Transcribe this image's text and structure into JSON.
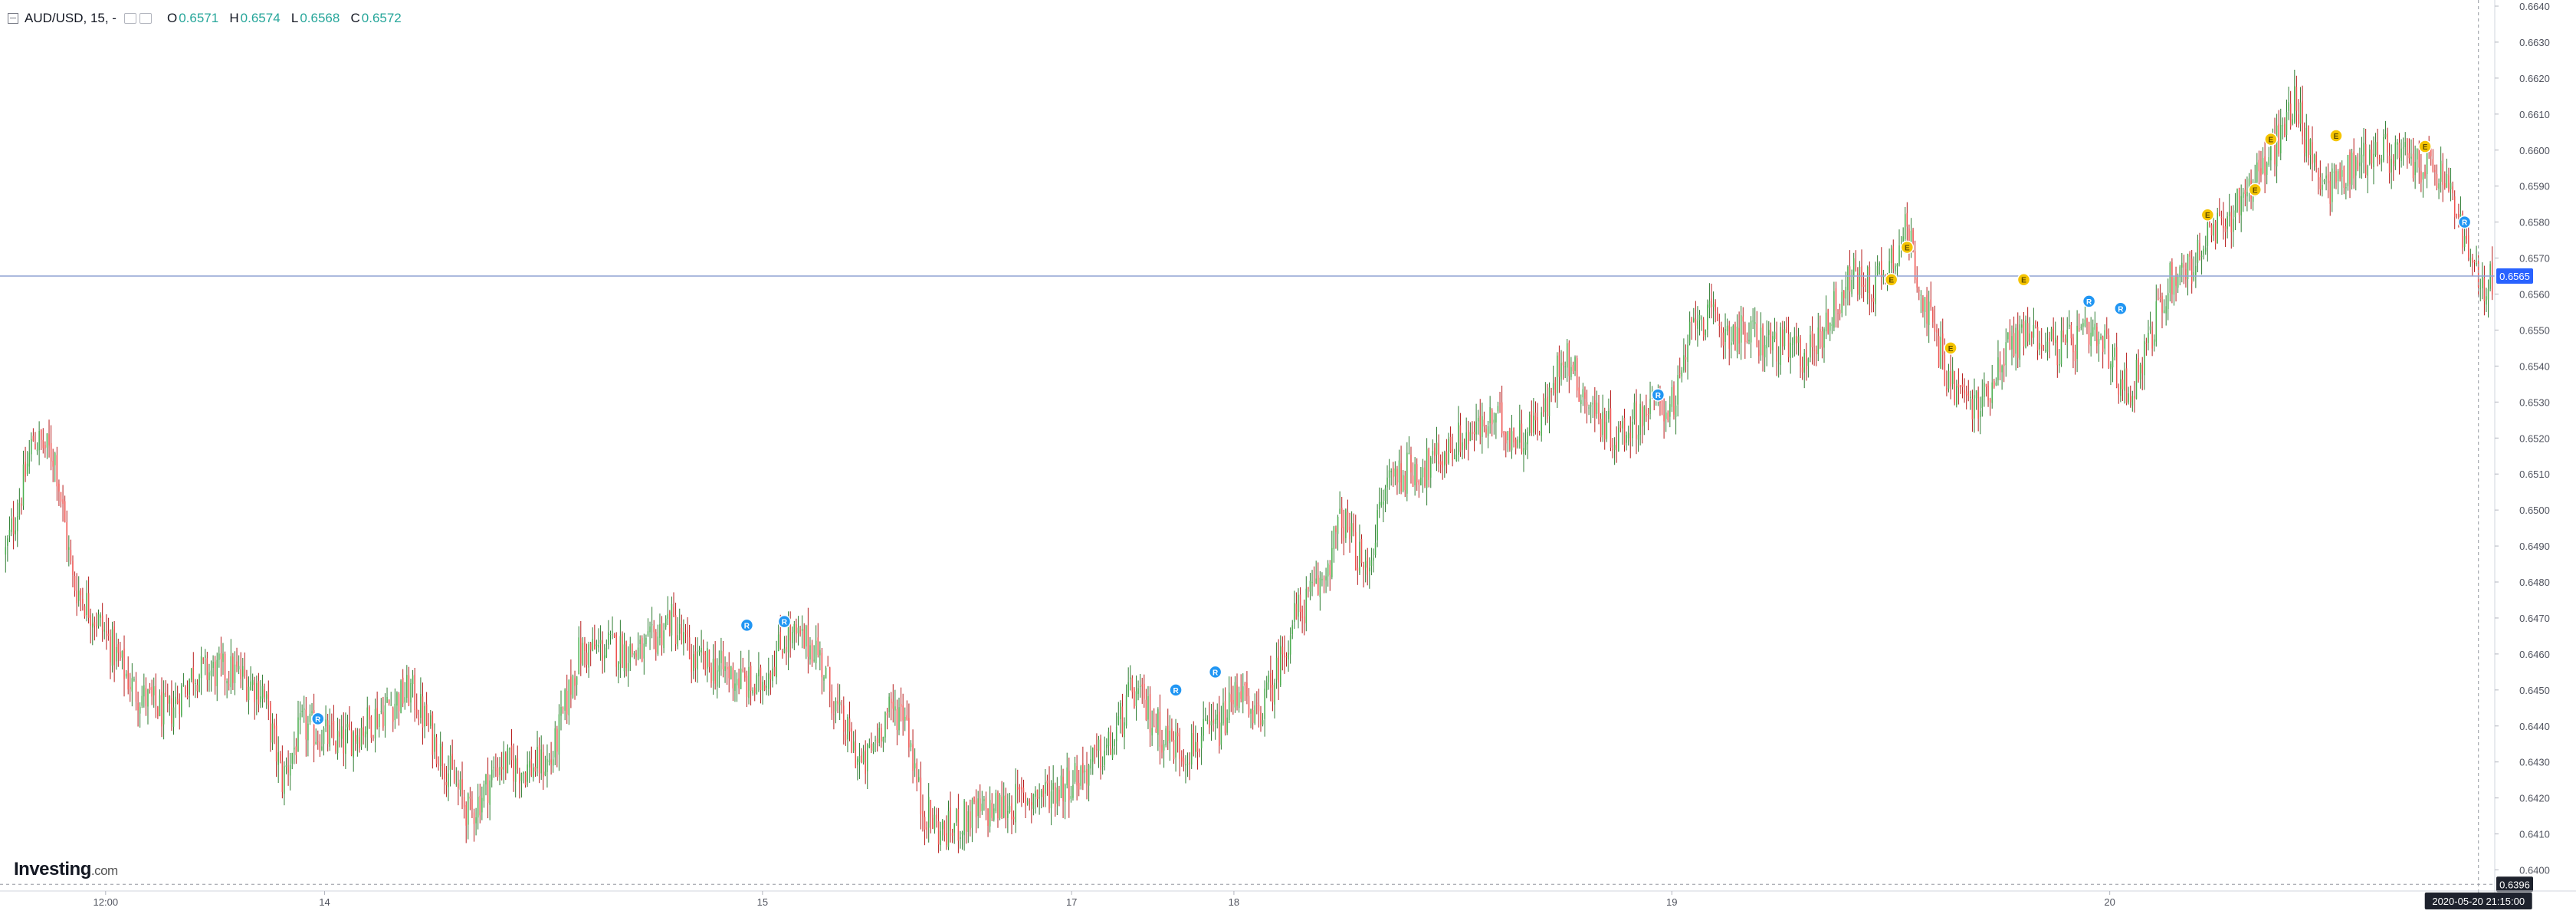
{
  "legend": {
    "symbol": "AUD/USD, 15, -",
    "open_label": "O",
    "open": "0.6571",
    "high_label": "H",
    "high": "0.6574",
    "low_label": "L",
    "low": "0.6568",
    "close_label": "C",
    "close": "0.6572"
  },
  "branding": {
    "name": "Investing",
    "suffix": ".com"
  },
  "colors": {
    "up": "#26a69a",
    "up_body": "#4caf50",
    "down": "#ef5350",
    "wick": "#8a8a8a",
    "price_line": "#2962ff",
    "event_yellow": "#f5c400",
    "event_blue": "#2196f3",
    "grid": "#e0e3eb",
    "text": "#131722"
  },
  "chart_data": {
    "type": "candlestick",
    "ylim": [
      0.6395,
      0.664
    ],
    "y_ticks": [
      "0.6640",
      "0.6630",
      "0.6620",
      "0.6610",
      "0.6600",
      "0.6590",
      "0.6580",
      "0.6570",
      "0.6560",
      "0.6550",
      "0.6540",
      "0.6530",
      "0.6520",
      "0.6510",
      "0.6500",
      "0.6490",
      "0.6480",
      "0.6470",
      "0.6460",
      "0.6450",
      "0.6440",
      "0.6430",
      "0.6420",
      "0.6410",
      "0.6400"
    ],
    "x_ticks": [
      {
        "label": "12:00",
        "frac": 0.041
      },
      {
        "label": "14",
        "frac": 0.126
      },
      {
        "label": "15",
        "frac": 0.296
      },
      {
        "label": "17",
        "frac": 0.416
      },
      {
        "label": "18",
        "frac": 0.479
      },
      {
        "label": "19",
        "frac": 0.649
      },
      {
        "label": "20",
        "frac": 0.819
      }
    ],
    "current_price": 0.6565,
    "current_price_label": "0.6565",
    "low_marker_price": 0.6396,
    "low_marker_label": "0.6396",
    "time_label": "2020-05-20 21:15:00",
    "anchors": [
      [
        0,
        0.6488
      ],
      [
        8,
        0.6505
      ],
      [
        14,
        0.652
      ],
      [
        25,
        0.6515
      ],
      [
        34,
        0.648
      ],
      [
        48,
        0.6468
      ],
      [
        65,
        0.645
      ],
      [
        82,
        0.6443
      ],
      [
        95,
        0.6455
      ],
      [
        115,
        0.6455
      ],
      [
        130,
        0.645
      ],
      [
        140,
        0.6425
      ],
      [
        150,
        0.644
      ],
      [
        170,
        0.6435
      ],
      [
        192,
        0.6445
      ],
      [
        205,
        0.645
      ],
      [
        222,
        0.643
      ],
      [
        235,
        0.6415
      ],
      [
        250,
        0.643
      ],
      [
        262,
        0.6428
      ],
      [
        276,
        0.643
      ],
      [
        290,
        0.646
      ],
      [
        305,
        0.6462
      ],
      [
        323,
        0.646
      ],
      [
        336,
        0.647
      ],
      [
        348,
        0.6458
      ],
      [
        365,
        0.6455
      ],
      [
        380,
        0.645
      ],
      [
        395,
        0.6465
      ],
      [
        410,
        0.6462
      ],
      [
        422,
        0.6442
      ],
      [
        434,
        0.6428
      ],
      [
        445,
        0.6443
      ],
      [
        455,
        0.6445
      ],
      [
        463,
        0.6418
      ],
      [
        474,
        0.641
      ],
      [
        488,
        0.6415
      ],
      [
        508,
        0.6418
      ],
      [
        515,
        0.642
      ],
      [
        530,
        0.6422
      ],
      [
        547,
        0.6428
      ],
      [
        560,
        0.6435
      ],
      [
        570,
        0.645
      ],
      [
        585,
        0.6438
      ],
      [
        596,
        0.6433
      ],
      [
        615,
        0.644
      ],
      [
        625,
        0.6452
      ],
      [
        630,
        0.644
      ],
      [
        640,
        0.645
      ],
      [
        652,
        0.647
      ],
      [
        666,
        0.648
      ],
      [
        676,
        0.6498
      ],
      [
        688,
        0.6482
      ],
      [
        700,
        0.651
      ],
      [
        720,
        0.6512
      ],
      [
        737,
        0.652
      ],
      [
        755,
        0.6525
      ],
      [
        765,
        0.652
      ],
      [
        780,
        0.6528
      ],
      [
        788,
        0.6545
      ],
      [
        800,
        0.653
      ],
      [
        815,
        0.652
      ],
      [
        830,
        0.6528
      ],
      [
        845,
        0.653
      ],
      [
        855,
        0.6555
      ],
      [
        870,
        0.655
      ],
      [
        885,
        0.6548
      ],
      [
        900,
        0.6545
      ],
      [
        912,
        0.6543
      ],
      [
        924,
        0.6555
      ],
      [
        934,
        0.6565
      ],
      [
        944,
        0.6562
      ],
      [
        954,
        0.657
      ],
      [
        962,
        0.6578
      ],
      [
        972,
        0.6555
      ],
      [
        984,
        0.6535
      ],
      [
        998,
        0.6528
      ],
      [
        1012,
        0.6545
      ],
      [
        1024,
        0.655
      ],
      [
        1040,
        0.6545
      ],
      [
        1052,
        0.6548
      ],
      [
        1062,
        0.6545
      ],
      [
        1074,
        0.6532
      ],
      [
        1086,
        0.655
      ],
      [
        1096,
        0.6565
      ],
      [
        1106,
        0.6568
      ],
      [
        1114,
        0.6575
      ],
      [
        1124,
        0.658
      ],
      [
        1132,
        0.6588
      ],
      [
        1142,
        0.6595
      ],
      [
        1152,
        0.6605
      ],
      [
        1158,
        0.6615
      ],
      [
        1166,
        0.6598
      ],
      [
        1176,
        0.659
      ],
      [
        1186,
        0.6595
      ],
      [
        1198,
        0.66
      ],
      [
        1212,
        0.6598
      ],
      [
        1226,
        0.6595
      ],
      [
        1236,
        0.659
      ],
      [
        1244,
        0.6575
      ],
      [
        1252,
        0.656
      ],
      [
        1258,
        0.6565
      ]
    ],
    "events": [
      {
        "type": "blue",
        "letter": "R",
        "i": 158,
        "price": 0.6442
      },
      {
        "type": "blue",
        "letter": "R",
        "i": 375,
        "price": 0.6468
      },
      {
        "type": "blue",
        "letter": "R",
        "i": 394,
        "price": 0.6469
      },
      {
        "type": "blue",
        "letter": "R",
        "i": 592,
        "price": 0.645
      },
      {
        "type": "blue",
        "letter": "R",
        "i": 612,
        "price": 0.6455
      },
      {
        "type": "blue",
        "letter": "R",
        "i": 836,
        "price": 0.6532
      },
      {
        "type": "yellow",
        "letter": "E",
        "i": 954,
        "price": 0.6564
      },
      {
        "type": "yellow",
        "letter": "E",
        "i": 962,
        "price": 0.6573
      },
      {
        "type": "yellow",
        "letter": "E",
        "i": 984,
        "price": 0.6545
      },
      {
        "type": "yellow",
        "letter": "E",
        "i": 1021,
        "price": 0.6564
      },
      {
        "type": "blue",
        "letter": "R",
        "i": 1054,
        "price": 0.6558
      },
      {
        "type": "blue",
        "letter": "R",
        "i": 1070,
        "price": 0.6556
      },
      {
        "type": "yellow",
        "letter": "E",
        "i": 1114,
        "price": 0.6582
      },
      {
        "type": "yellow",
        "letter": "E",
        "i": 1138,
        "price": 0.6589
      },
      {
        "type": "yellow",
        "letter": "E",
        "i": 1146,
        "price": 0.6603
      },
      {
        "type": "yellow",
        "letter": "E",
        "i": 1179,
        "price": 0.6604
      },
      {
        "type": "yellow",
        "letter": "E",
        "i": 1224,
        "price": 0.6601
      },
      {
        "type": "blue",
        "letter": "R",
        "i": 1244,
        "price": 0.658
      }
    ]
  }
}
